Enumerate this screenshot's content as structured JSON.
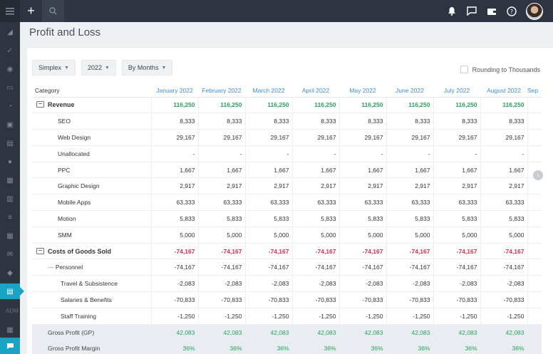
{
  "page": {
    "title": "Profit and Loss"
  },
  "sidebar": {
    "admin_label": "ADM"
  },
  "filters": {
    "method": "Simplex",
    "year": "2022",
    "period": "By Months",
    "rounding_label": "Rounding to Thousands",
    "rounding_checked": false
  },
  "table": {
    "category_header": "Category",
    "months": [
      "January 2022",
      "February 2022",
      "March 2022",
      "April 2022",
      "May 2022",
      "June 2022",
      "July 2022",
      "August 2022",
      "Sep"
    ],
    "rows": [
      {
        "label": "Revenue",
        "kind": "group-pos",
        "values": [
          "116,250",
          "116,250",
          "116,250",
          "116,250",
          "116,250",
          "116,250",
          "116,250",
          "116,250"
        ]
      },
      {
        "label": "SEO",
        "kind": "item",
        "values": [
          "8,333",
          "8,333",
          "8,333",
          "8,333",
          "8,333",
          "8,333",
          "8,333",
          "8,333"
        ]
      },
      {
        "label": "Web Design",
        "kind": "item",
        "values": [
          "29,167",
          "29,167",
          "29,167",
          "29,167",
          "29,167",
          "29,167",
          "29,167",
          "29,167"
        ]
      },
      {
        "label": "Unallocated",
        "kind": "item",
        "values": [
          "-",
          "-",
          "-",
          "-",
          "-",
          "-",
          "-",
          "-"
        ]
      },
      {
        "label": "PPC",
        "kind": "item",
        "values": [
          "1,667",
          "1,667",
          "1,667",
          "1,667",
          "1,667",
          "1,667",
          "1,667",
          "1,667"
        ]
      },
      {
        "label": "Graphic Design",
        "kind": "item",
        "values": [
          "2,917",
          "2,917",
          "2,917",
          "2,917",
          "2,917",
          "2,917",
          "2,917",
          "2,917"
        ]
      },
      {
        "label": "Mobile Apps",
        "kind": "item",
        "values": [
          "63,333",
          "63,333",
          "63,333",
          "63,333",
          "63,333",
          "63,333",
          "63,333",
          "63,333"
        ]
      },
      {
        "label": "Motion",
        "kind": "item",
        "values": [
          "5,833",
          "5,833",
          "5,833",
          "5,833",
          "5,833",
          "5,833",
          "5,833",
          "5,833"
        ]
      },
      {
        "label": "SMM",
        "kind": "item",
        "values": [
          "5,000",
          "5,000",
          "5,000",
          "5,000",
          "5,000",
          "5,000",
          "5,000",
          "5,000"
        ]
      },
      {
        "label": "Costs of Goods Sold",
        "kind": "group-neg",
        "values": [
          "-74,167",
          "-74,167",
          "-74,167",
          "-74,167",
          "-74,167",
          "-74,167",
          "-74,167",
          "-74,167"
        ]
      },
      {
        "label": "Personnel",
        "kind": "subgroup",
        "values": [
          "-74,167",
          "-74,167",
          "-74,167",
          "-74,167",
          "-74,167",
          "-74,167",
          "-74,167",
          "-74,167"
        ]
      },
      {
        "label": "Travel & Subsistence",
        "kind": "subitem",
        "values": [
          "-2,083",
          "-2,083",
          "-2,083",
          "-2,083",
          "-2,083",
          "-2,083",
          "-2,083",
          "-2,083"
        ]
      },
      {
        "label": "Salaries & Benefits",
        "kind": "subitem",
        "values": [
          "-70,833",
          "-70,833",
          "-70,833",
          "-70,833",
          "-70,833",
          "-70,833",
          "-70,833",
          "-70,833"
        ]
      },
      {
        "label": "Staff Training",
        "kind": "subitem",
        "values": [
          "-1,250",
          "-1,250",
          "-1,250",
          "-1,250",
          "-1,250",
          "-1,250",
          "-1,250",
          "-1,250"
        ]
      },
      {
        "label": "Gross Profit (GP)",
        "kind": "summary",
        "values": [
          "42,083",
          "42,083",
          "42,083",
          "42,083",
          "42,083",
          "42,083",
          "42,083",
          "42,083"
        ]
      },
      {
        "label": "Gross Profit Margin",
        "kind": "summary",
        "values": [
          "36%",
          "36%",
          "36%",
          "36%",
          "36%",
          "36%",
          "36%",
          "36%"
        ]
      }
    ]
  }
}
